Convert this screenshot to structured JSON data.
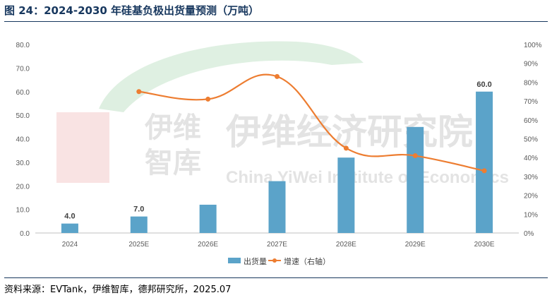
{
  "figure": {
    "title": "图 24：2024-2030 年硅基负极出货量预测（万吨）",
    "source": "资料来源：EVTank，伊维智库，德邦研究所，2025.07"
  },
  "watermark": {
    "cn_large": "伊维经济研究院",
    "cn_small_1": "伊维",
    "cn_small_2": "智库",
    "en": "China YiWei Institute of Economics"
  },
  "colors": {
    "bar": "#5ba3c9",
    "line": "#ed7d31",
    "axis_text": "#595959",
    "title": "#17375e"
  },
  "chart_data": {
    "type": "bar",
    "categories": [
      "2024",
      "2025E",
      "2026E",
      "2027E",
      "2028E",
      "2029E",
      "2030E"
    ],
    "series": [
      {
        "name": "出货量",
        "type": "bar",
        "axis": "left",
        "values": [
          4.0,
          7.0,
          12.0,
          22.0,
          32.0,
          45.0,
          60.0
        ]
      },
      {
        "name": "增速（右轴）",
        "type": "line",
        "axis": "right",
        "values": [
          null,
          0.75,
          0.71,
          0.83,
          0.45,
          0.41,
          0.33
        ]
      }
    ],
    "data_labels": [
      {
        "index": 0,
        "text": "4.0"
      },
      {
        "index": 1,
        "text": "7.0"
      },
      {
        "index": 6,
        "text": "60.0"
      }
    ],
    "left_axis": {
      "ylim": [
        0,
        80
      ],
      "ticks": [
        "0.0",
        "10.0",
        "20.0",
        "30.0",
        "40.0",
        "50.0",
        "60.0",
        "70.0",
        "80.0"
      ]
    },
    "right_axis": {
      "ylim": [
        0,
        1
      ],
      "ticks": [
        "0%",
        "10%",
        "20%",
        "30%",
        "40%",
        "50%",
        "60%",
        "70%",
        "80%",
        "90%",
        "100%"
      ]
    },
    "legend_position": "bottom",
    "grid": false
  }
}
